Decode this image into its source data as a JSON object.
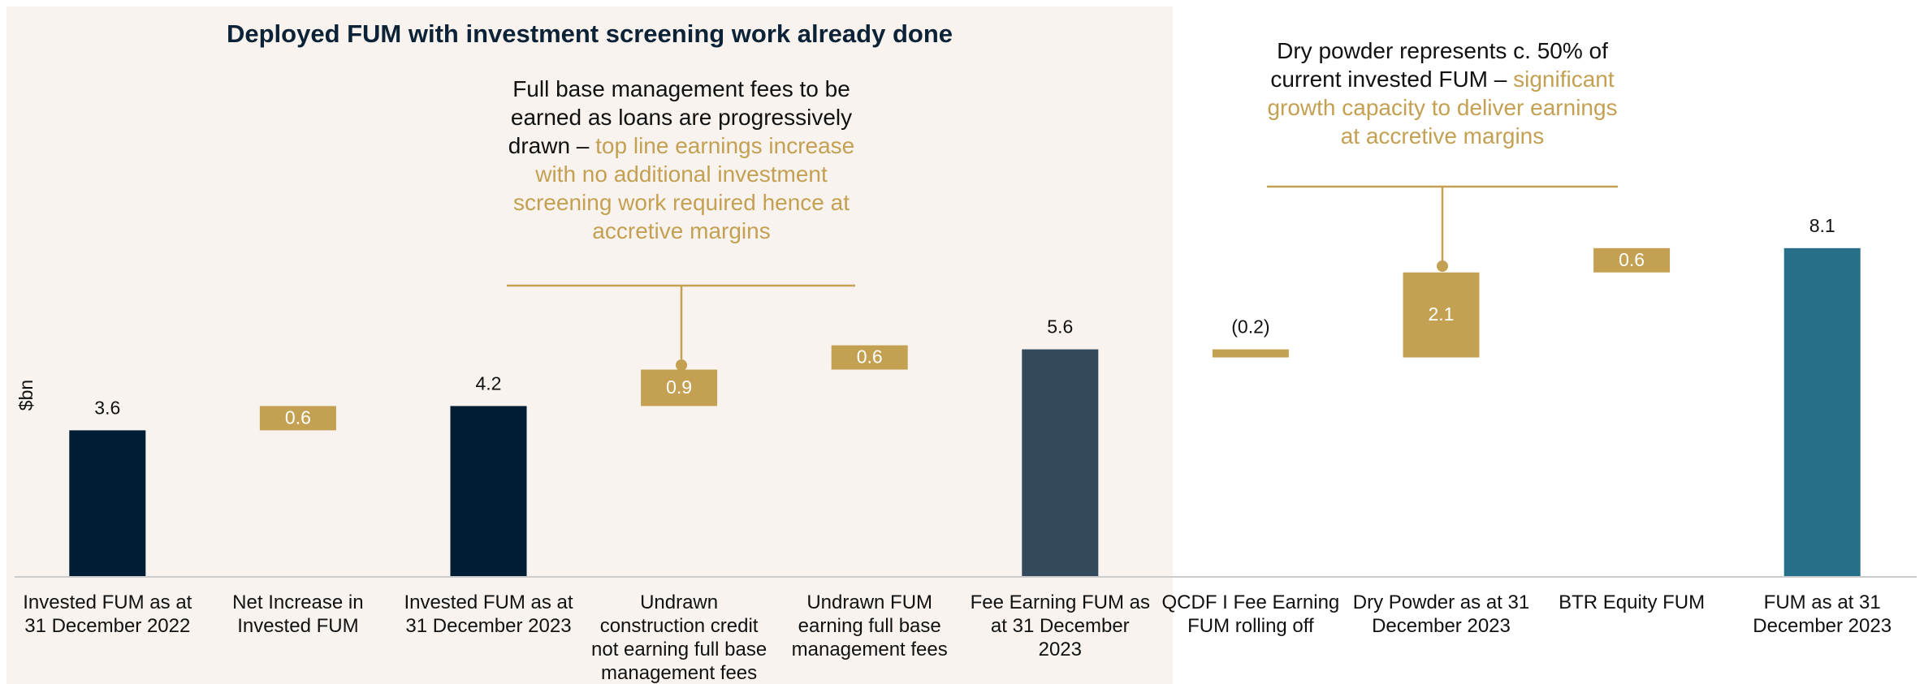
{
  "chart_data": {
    "type": "waterfall",
    "title": "Deployed FUM with investment screening work already done",
    "y_label": "$bn",
    "categories": [
      "Invested FUM as at 31 December 2022",
      "Net Increase in Invested FUM",
      "Invested FUM as at 31 December 2023",
      "Undrawn construction credit not earning full base management fees",
      "Undrawn FUM earning full base management fees",
      "Fee Earning FUM as at 31 December 2023",
      "QCDF I Fee Earning FUM rolling off",
      "Dry Powder as at 31 December 2023",
      "BTR Equity FUM",
      "FUM as at 31 December 2023"
    ],
    "values": [
      3.6,
      0.6,
      4.2,
      0.9,
      0.6,
      5.6,
      -0.2,
      2.1,
      0.6,
      8.1
    ],
    "value_labels": [
      "3.6",
      "0.6",
      "4.2",
      "0.9",
      "0.6",
      "5.6",
      "(0.2)",
      "2.1",
      "0.6",
      "8.1"
    ],
    "kinds": [
      "total",
      "delta",
      "total",
      "delta",
      "delta",
      "total",
      "delta",
      "delta",
      "delta",
      "total"
    ],
    "colors": [
      "#001d33",
      "#c4a052",
      "#001d33",
      "#c4a052",
      "#c4a052",
      "#344a5c",
      "#c4a052",
      "#c4a052",
      "#c4a052",
      "#276e88"
    ],
    "ylim": [
      0,
      10
    ],
    "annotations": [
      {
        "text": "Full base management fees to be earned as loans are progressively drawn –",
        "highlight": "top line earnings increase with no additional investment screening work required hence at accretive margins"
      },
      {
        "text": "Dry powder represents c. 50% of current invested FUM –",
        "highlight": "significant growth capacity to deliver earnings at accretive margins"
      }
    ]
  }
}
